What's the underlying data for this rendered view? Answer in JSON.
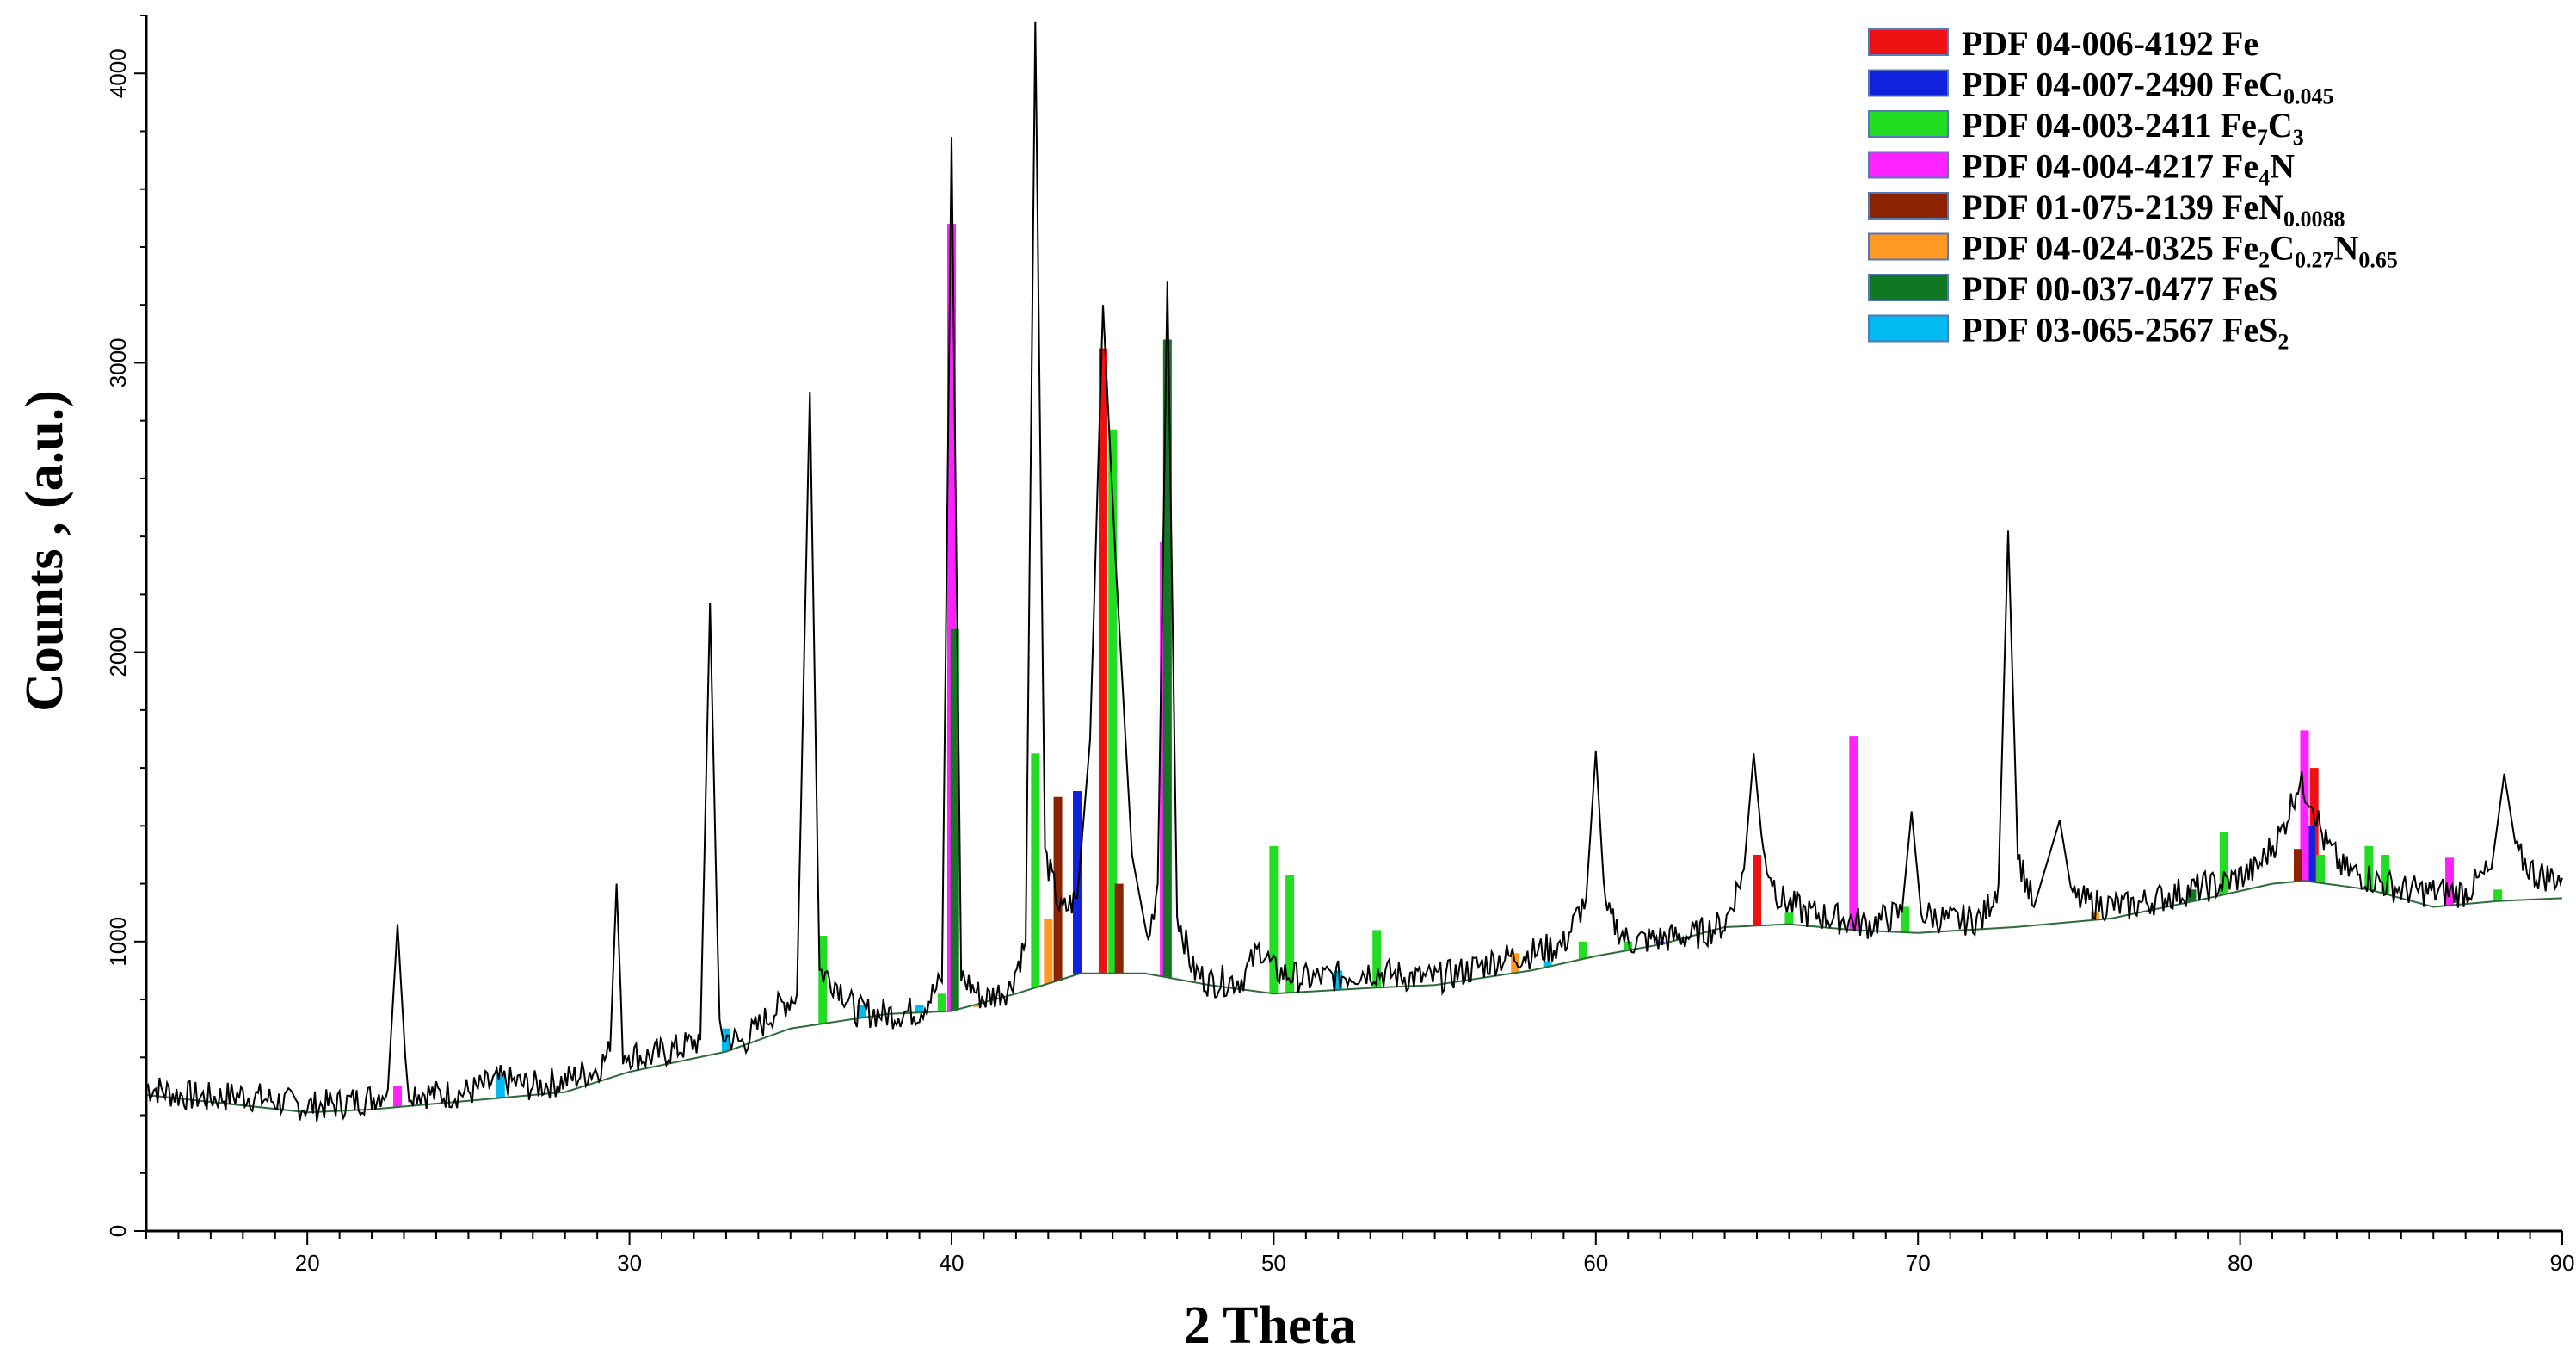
{
  "chart_data": {
    "type": "line",
    "title": "",
    "xlabel": "2 Theta",
    "ylabel": "Counts , (a.u.)",
    "xlim": [
      15,
      90
    ],
    "ylim": [
      0,
      4200
    ],
    "x_ticks": [
      20,
      30,
      40,
      50,
      60,
      70,
      80,
      90
    ],
    "y_ticks": [
      0,
      1000,
      2000,
      3000,
      4000
    ],
    "grid": false,
    "legend_position": "top-right",
    "pattern": {
      "name": "measured",
      "color": "#000000",
      "points": [
        [
          15.0,
          500
        ],
        [
          16.0,
          470
        ],
        [
          17.0,
          460
        ],
        [
          18.0,
          470
        ],
        [
          19.0,
          450
        ],
        [
          20.0,
          430
        ],
        [
          21.0,
          440
        ],
        [
          22.0,
          460
        ],
        [
          22.5,
          490
        ],
        [
          22.8,
          1060
        ],
        [
          23.1,
          490
        ],
        [
          24.0,
          470
        ],
        [
          25.0,
          480
        ],
        [
          26.0,
          520
        ],
        [
          27.0,
          500
        ],
        [
          28.0,
          520
        ],
        [
          29.0,
          560
        ],
        [
          29.4,
          620
        ],
        [
          29.6,
          1200
        ],
        [
          29.8,
          620
        ],
        [
          30.5,
          600
        ],
        [
          31.5,
          630
        ],
        [
          32.2,
          660
        ],
        [
          32.5,
          2170
        ],
        [
          32.8,
          680
        ],
        [
          33.5,
          650
        ],
        [
          34.5,
          760
        ],
        [
          35.2,
          820
        ],
        [
          35.6,
          2900
        ],
        [
          35.9,
          900
        ],
        [
          36.5,
          850
        ],
        [
          37.0,
          760
        ],
        [
          38.0,
          750
        ],
        [
          39.0,
          760
        ],
        [
          39.7,
          860
        ],
        [
          40.0,
          3780
        ],
        [
          40.3,
          880
        ],
        [
          41.0,
          800
        ],
        [
          41.8,
          840
        ],
        [
          42.3,
          1000
        ],
        [
          42.6,
          4180
        ],
        [
          42.9,
          1300
        ],
        [
          43.4,
          1100
        ],
        [
          43.9,
          1150
        ],
        [
          44.3,
          1700
        ],
        [
          44.7,
          3200
        ],
        [
          45.1,
          2300
        ],
        [
          45.6,
          1300
        ],
        [
          46.1,
          1000
        ],
        [
          46.4,
          1200
        ],
        [
          46.7,
          3280
        ],
        [
          47.0,
          1100
        ],
        [
          47.5,
          900
        ],
        [
          48.0,
          860
        ],
        [
          49.0,
          870
        ],
        [
          49.6,
          980
        ],
        [
          50.0,
          900
        ],
        [
          51.0,
          870
        ],
        [
          52.0,
          880
        ],
        [
          53.0,
          900
        ],
        [
          54.0,
          880
        ],
        [
          55.0,
          870
        ],
        [
          56.0,
          900
        ],
        [
          57.0,
          940
        ],
        [
          58.0,
          960
        ],
        [
          59.0,
          990
        ],
        [
          59.7,
          1150
        ],
        [
          60.0,
          1660
        ],
        [
          60.3,
          1100
        ],
        [
          61.0,
          1000
        ],
        [
          62.0,
          1010
        ],
        [
          63.0,
          1020
        ],
        [
          64.0,
          1060
        ],
        [
          64.6,
          1250
        ],
        [
          64.9,
          1650
        ],
        [
          65.2,
          1300
        ],
        [
          65.7,
          1150
        ],
        [
          66.5,
          1100
        ],
        [
          67.5,
          1080
        ],
        [
          68.5,
          1060
        ],
        [
          69.5,
          1100
        ],
        [
          69.8,
          1450
        ],
        [
          70.1,
          1100
        ],
        [
          71.0,
          1070
        ],
        [
          72.0,
          1080
        ],
        [
          72.5,
          1200
        ],
        [
          72.8,
          2420
        ],
        [
          73.1,
          1300
        ],
        [
          73.6,
          1120
        ],
        [
          74.4,
          1420
        ],
        [
          74.8,
          1150
        ],
        [
          75.5,
          1130
        ],
        [
          76.5,
          1120
        ],
        [
          77.5,
          1150
        ],
        [
          78.5,
          1180
        ],
        [
          79.5,
          1200
        ],
        [
          80.5,
          1250
        ],
        [
          81.3,
          1380
        ],
        [
          81.8,
          1550
        ],
        [
          82.2,
          1500
        ],
        [
          82.6,
          1350
        ],
        [
          83.2,
          1250
        ],
        [
          84.0,
          1220
        ],
        [
          85.0,
          1180
        ],
        [
          86.0,
          1170
        ],
        [
          87.0,
          1170
        ],
        [
          87.8,
          1250
        ],
        [
          88.2,
          1580
        ],
        [
          88.6,
          1300
        ],
        [
          89.2,
          1230
        ],
        [
          90.0,
          1220
        ]
      ]
    },
    "background": {
      "name": "background",
      "color": "#2e6b3a",
      "points": [
        [
          15.0,
          470
        ],
        [
          20.0,
          410
        ],
        [
          22.0,
          420
        ],
        [
          25.0,
          450
        ],
        [
          28.0,
          480
        ],
        [
          30.0,
          550
        ],
        [
          33.0,
          620
        ],
        [
          35.0,
          700
        ],
        [
          38.0,
          750
        ],
        [
          40.0,
          760
        ],
        [
          42.0,
          820
        ],
        [
          44.0,
          890
        ],
        [
          46.0,
          890
        ],
        [
          48.0,
          850
        ],
        [
          50.0,
          820
        ],
        [
          53.0,
          840
        ],
        [
          55.0,
          850
        ],
        [
          58.0,
          900
        ],
        [
          60.0,
          950
        ],
        [
          62.0,
          990
        ],
        [
          64.0,
          1050
        ],
        [
          66.0,
          1060
        ],
        [
          68.0,
          1040
        ],
        [
          70.0,
          1030
        ],
        [
          73.0,
          1050
        ],
        [
          76.0,
          1080
        ],
        [
          79.0,
          1150
        ],
        [
          81.0,
          1200
        ],
        [
          82.0,
          1210
        ],
        [
          84.0,
          1180
        ],
        [
          86.0,
          1120
        ],
        [
          88.0,
          1140
        ],
        [
          90.0,
          1150
        ]
      ]
    },
    "series": [
      {
        "name": "PDF 04-006-4192 Fe",
        "color": "#ee1111",
        "sticks": [
          [
            44.7,
            3050
          ],
          [
            65.0,
            1300
          ],
          [
            82.3,
            1600
          ]
        ]
      },
      {
        "name": "PDF 04-007-2490 FeC0.045",
        "color": "#1122dd",
        "sticks": [
          [
            43.9,
            1520
          ],
          [
            62.0,
            1000
          ],
          [
            82.2,
            1400
          ]
        ]
      },
      {
        "name": "PDF 04-003-2411 Fe7C3",
        "color": "#22dd22",
        "sticks": [
          [
            36.0,
            1020
          ],
          [
            39.7,
            820
          ],
          [
            42.6,
            1650
          ],
          [
            45.0,
            2770
          ],
          [
            50.0,
            1330
          ],
          [
            50.5,
            1230
          ],
          [
            53.2,
            1040
          ],
          [
            59.6,
            1000
          ],
          [
            61.0,
            1000
          ],
          [
            66.0,
            1100
          ],
          [
            69.6,
            1120
          ],
          [
            79.5,
            1380
          ],
          [
            82.5,
            1300
          ],
          [
            84.0,
            1330
          ],
          [
            84.5,
            1300
          ],
          [
            88.0,
            1180
          ]
        ]
      },
      {
        "name": "PDF 04-004-4217 Fe4N",
        "color": "#ff22ff",
        "sticks": [
          [
            22.8,
            500
          ],
          [
            40.0,
            3480
          ],
          [
            46.6,
            2380
          ],
          [
            68.0,
            1710
          ],
          [
            82.0,
            1730
          ],
          [
            86.5,
            1290
          ]
        ]
      },
      {
        "name": "PDF 01-075-2139 FeN0.0088",
        "color": "#8b2200",
        "sticks": [
          [
            43.3,
            1500
          ],
          [
            45.2,
            1200
          ],
          [
            81.8,
            1320
          ]
        ]
      },
      {
        "name": "PDF 04-024-0325 Fe2C0.27N0.65",
        "color": "#ff9922",
        "sticks": [
          [
            40.8,
            780
          ],
          [
            43.0,
            1080
          ],
          [
            57.5,
            960
          ],
          [
            75.5,
            1100
          ]
        ]
      },
      {
        "name": "PDF 00-037-0477 FeS",
        "color": "#117722",
        "sticks": [
          [
            40.1,
            2080
          ],
          [
            46.7,
            3080
          ],
          [
            78.5,
            1180
          ]
        ]
      },
      {
        "name": "PDF 03-065-2567 FeS2",
        "color": "#00bbee",
        "sticks": [
          [
            26.0,
            540
          ],
          [
            33.0,
            700
          ],
          [
            37.2,
            780
          ],
          [
            39.0,
            780
          ],
          [
            52.0,
            900
          ],
          [
            58.5,
            930
          ]
        ]
      }
    ],
    "legend": [
      {
        "prefix": "PDF 04-006-4192 ",
        "parts": [
          [
            "Fe",
            ""
          ]
        ]
      },
      {
        "prefix": "PDF 04-007-2490 ",
        "parts": [
          [
            "FeC",
            ""
          ],
          [
            "0.045",
            "sub"
          ]
        ]
      },
      {
        "prefix": "PDF 04-003-2411 ",
        "parts": [
          [
            "Fe",
            ""
          ],
          [
            "7",
            "sub"
          ],
          [
            "C",
            ""
          ],
          [
            "3",
            "sub"
          ]
        ]
      },
      {
        "prefix": "PDF 04-004-4217 ",
        "parts": [
          [
            "Fe",
            ""
          ],
          [
            "4",
            "sub"
          ],
          [
            "N",
            ""
          ]
        ]
      },
      {
        "prefix": "PDF 01-075-2139 ",
        "parts": [
          [
            "FeN",
            ""
          ],
          [
            "0.0088",
            "sub"
          ]
        ]
      },
      {
        "prefix": "PDF 04-024-0325 ",
        "parts": [
          [
            "Fe",
            ""
          ],
          [
            "2",
            "sub"
          ],
          [
            "C",
            ""
          ],
          [
            "0.27",
            "sub"
          ],
          [
            "N",
            ""
          ],
          [
            "0.65",
            "sub"
          ]
        ]
      },
      {
        "prefix": "PDF 00-037-0477 ",
        "parts": [
          [
            "FeS",
            ""
          ]
        ]
      },
      {
        "prefix": "PDF 03-065-2567 ",
        "parts": [
          [
            "FeS",
            ""
          ],
          [
            "2",
            "sub"
          ]
        ]
      }
    ]
  }
}
